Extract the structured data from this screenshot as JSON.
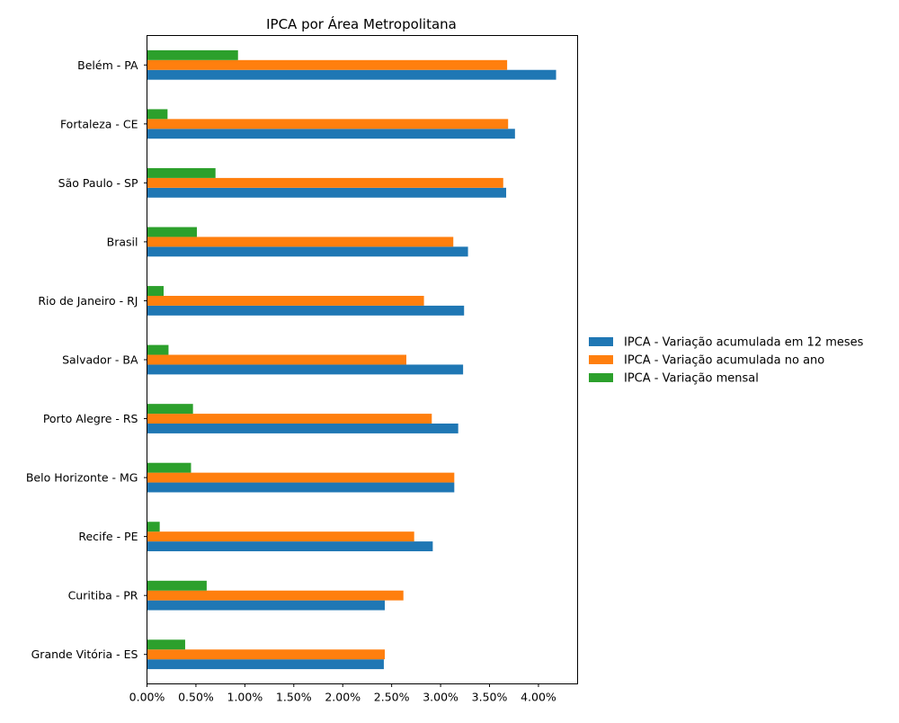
{
  "chart_data": {
    "type": "bar",
    "orientation": "horizontal",
    "title": "IPCA por Área Metropolitana",
    "xlabel": "",
    "ylabel": "",
    "xlim": [
      0,
      4.4
    ],
    "x_unit": "%",
    "x_ticks": [
      "0.00%",
      "0.50%",
      "1.00%",
      "1.50%",
      "2.00%",
      "2.50%",
      "3.00%",
      "3.50%",
      "4.00%"
    ],
    "categories": [
      "Belém - PA",
      "Fortaleza - CE",
      "São Paulo - SP",
      "Brasil",
      "Rio de Janeiro - RJ",
      "Salvador - BA",
      "Porto Alegre - RS",
      "Belo Horizonte - MG",
      "Recife - PE",
      "Curitiba - PR",
      "Grande Vitória - ES"
    ],
    "series": [
      {
        "name": "IPCA - Variação acumulada em 12 meses",
        "color": "#1f77b4",
        "values": [
          4.18,
          3.76,
          3.67,
          3.28,
          3.24,
          3.23,
          3.18,
          3.14,
          2.92,
          2.43,
          2.42
        ]
      },
      {
        "name": "IPCA - Variação acumulada no ano",
        "color": "#ff7f0e",
        "values": [
          3.68,
          3.69,
          3.64,
          3.13,
          2.83,
          2.65,
          2.91,
          3.14,
          2.73,
          2.62,
          2.43
        ]
      },
      {
        "name": "IPCA - Variação mensal",
        "color": "#2ca02c",
        "values": [
          0.93,
          0.21,
          0.7,
          0.51,
          0.17,
          0.22,
          0.47,
          0.45,
          0.13,
          0.61,
          0.39
        ]
      }
    ],
    "grid": false,
    "legend_position": "center-right"
  }
}
